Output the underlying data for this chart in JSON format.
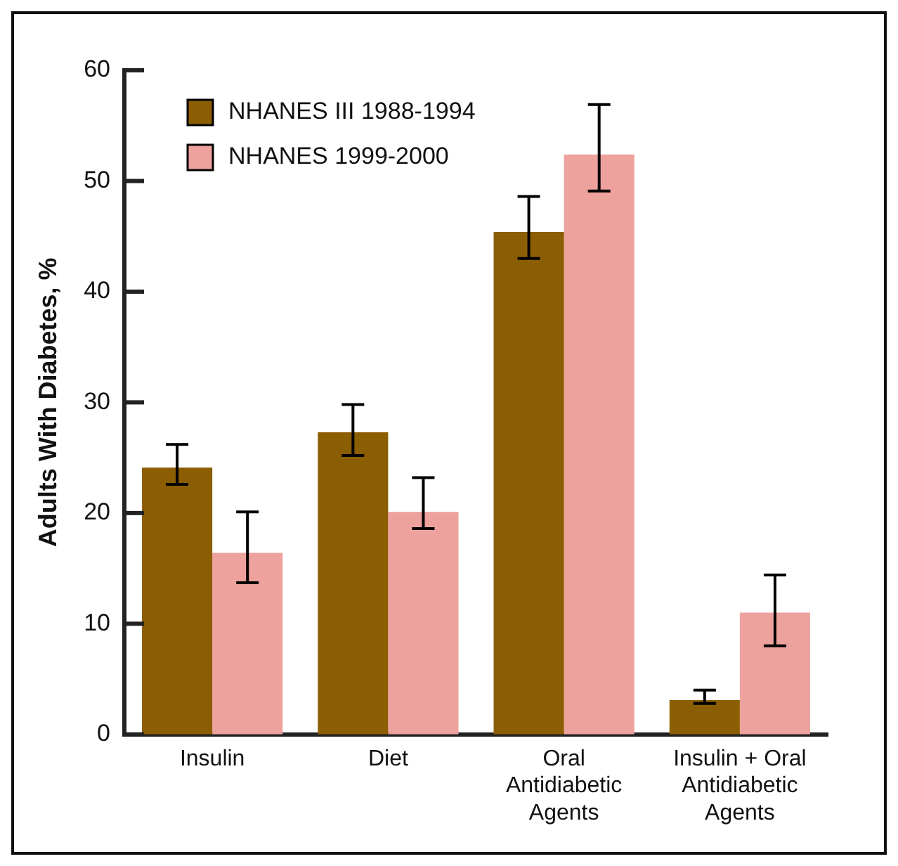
{
  "chart_data": {
    "type": "bar",
    "ylabel": "Adults With Diabetes, %",
    "categories": [
      "Insulin",
      "Diet",
      "Oral Antidiabetic Agents",
      "Insulin + Oral Antidiabetic Agents"
    ],
    "series": [
      {
        "name": "NHANES III 1988-1994",
        "color": "#8b5e03",
        "values": [
          24.1,
          27.3,
          45.4,
          3.1
        ],
        "errors": [
          [
            22.6,
            26.2
          ],
          [
            25.2,
            29.8
          ],
          [
            43.0,
            48.6
          ],
          [
            2.8,
            4.0
          ]
        ]
      },
      {
        "name": "NHANES 1999-2000",
        "color": "#eea29d",
        "values": [
          16.4,
          20.1,
          52.4,
          11.0
        ],
        "errors": [
          [
            13.7,
            20.1
          ],
          [
            18.6,
            23.2
          ],
          [
            49.1,
            56.9
          ],
          [
            8.0,
            14.4
          ]
        ]
      }
    ],
    "ylim": [
      0,
      60
    ],
    "yticks": [
      0,
      10,
      20,
      30,
      40,
      50,
      60
    ],
    "grid": false,
    "legend": "top left"
  }
}
